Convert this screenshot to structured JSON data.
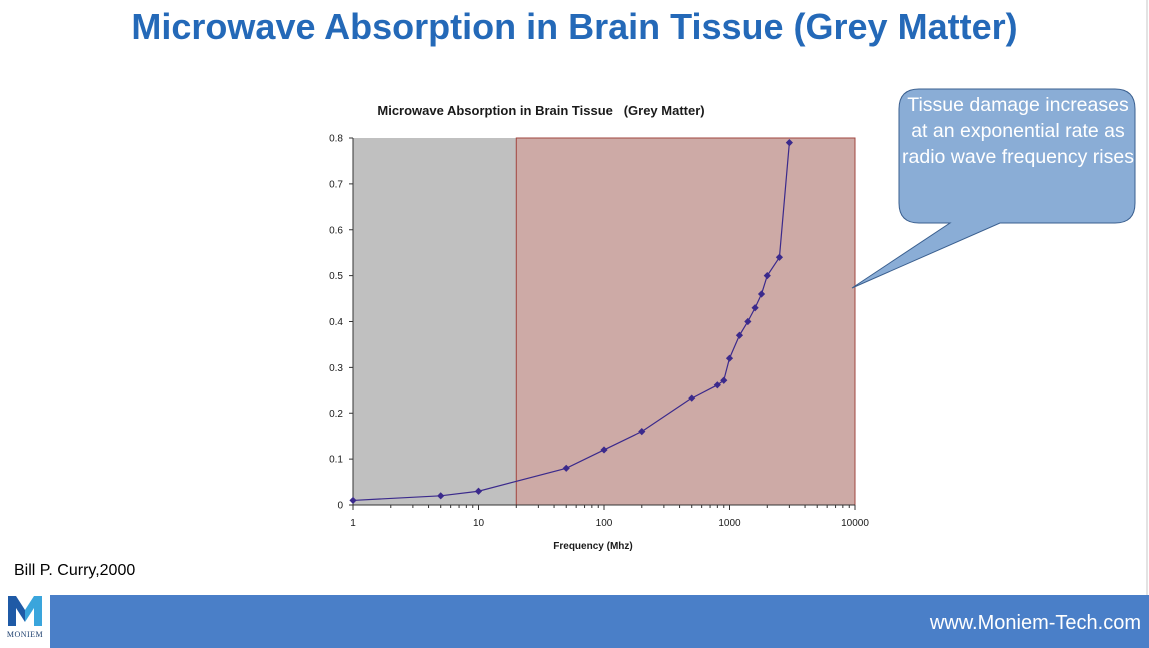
{
  "slide": {
    "title": "Microwave Absorption in Brain Tissue (Grey Matter)",
    "citation": "Bill P. Curry,2000",
    "website": "www.Moniem-Tech.com",
    "logo_text": "MONIEM"
  },
  "callout": {
    "text": "Tissue damage increases at an exponential rate as radio wave frequency rises"
  },
  "chart_data": {
    "type": "line",
    "title": "Microwave Absorption in Brain Tissue   (Grey Matter)",
    "xlabel": "Frequency (Mhz)",
    "ylabel": "",
    "x_scale": "log",
    "xlim": [
      1,
      10000
    ],
    "ylim": [
      0,
      0.8
    ],
    "x_ticks": [
      1,
      10,
      100,
      1000,
      10000
    ],
    "y_ticks": [
      0,
      0.1,
      0.2,
      0.3,
      0.4,
      0.5,
      0.6,
      0.7,
      0.8
    ],
    "x_tick_labels": [
      "1",
      "10",
      "100",
      "1000",
      "10000"
    ],
    "y_tick_labels": [
      "0",
      "0.1",
      "0.2",
      "0.3",
      "0.4",
      "0.5",
      "0.6",
      "0.7",
      "0.8"
    ],
    "regions": [
      {
        "x_start": 1,
        "x_end": 20,
        "color": "#c0c0c0"
      },
      {
        "x_start": 20,
        "x_end": 10000,
        "color": "#cdaaa6",
        "border": "#a0453f"
      }
    ],
    "series": [
      {
        "color": "#3b2a8c",
        "x": [
          1,
          5,
          10,
          50,
          100,
          200,
          500,
          800,
          900,
          1000,
          1200,
          1400,
          1600,
          1800,
          2000,
          2500,
          3000
        ],
        "y": [
          0.01,
          0.02,
          0.03,
          0.08,
          0.12,
          0.16,
          0.233,
          0.262,
          0.272,
          0.32,
          0.37,
          0.4,
          0.43,
          0.46,
          0.5,
          0.54,
          0.79
        ]
      }
    ]
  }
}
